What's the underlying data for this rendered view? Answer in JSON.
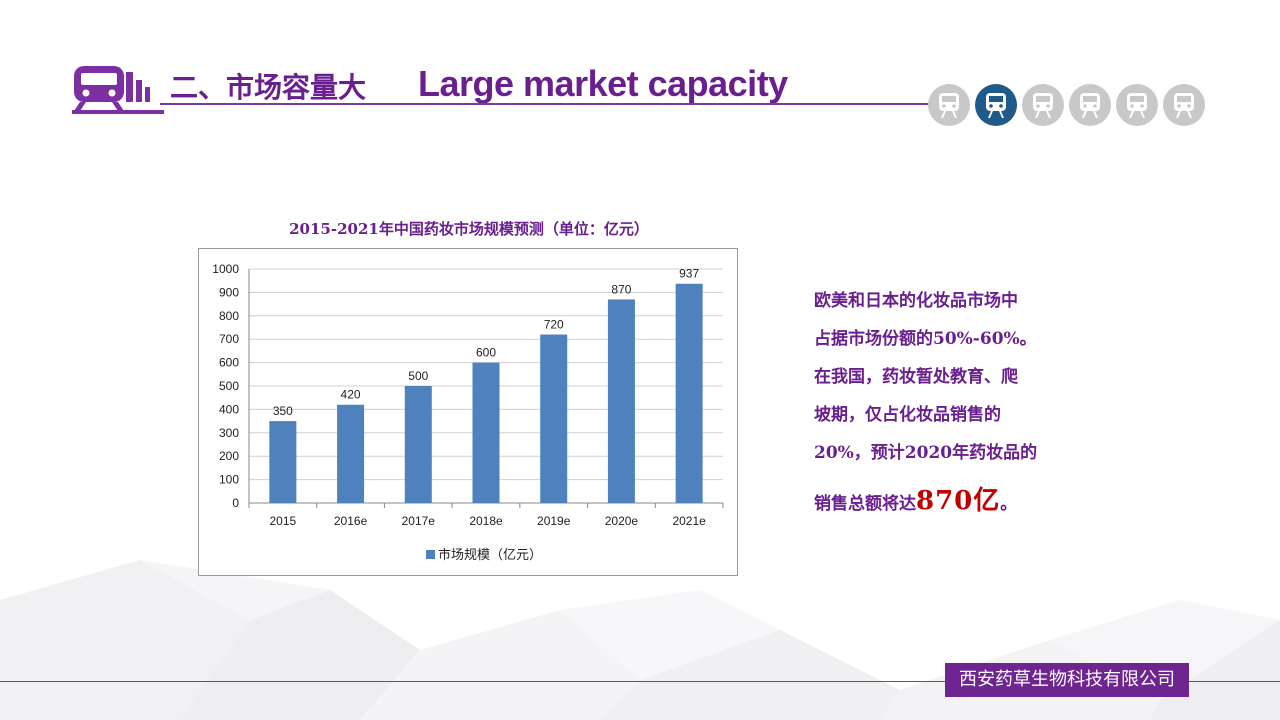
{
  "header": {
    "title_zh": "二、市场容量大",
    "title_en": "Large market capacity",
    "nav_icons": [
      "train-icon",
      "train-icon",
      "train-icon",
      "train-icon",
      "train-icon",
      "train-icon"
    ],
    "nav_active_index": 1
  },
  "chart_title": "2015-2021年中国药妆市场规模预测（单位：亿元）",
  "chart_data": {
    "type": "bar",
    "categories": [
      "2015",
      "2016e",
      "2017e",
      "2018e",
      "2019e",
      "2020e",
      "2021e"
    ],
    "series": [
      {
        "name": "市场规模（亿元）",
        "values": [
          350,
          420,
          500,
          600,
          720,
          870,
          937
        ]
      }
    ],
    "ylim": [
      0,
      1000
    ],
    "yticks": [
      0,
      100,
      200,
      300,
      400,
      500,
      600,
      700,
      800,
      900,
      1000
    ],
    "grid": true,
    "legend": "bottom",
    "bar_color": "#4f81bd"
  },
  "description": {
    "line1": "欧美和日本的化妆品市场中",
    "line2": "占据市场份额的50%-60%。",
    "line3": "在我国，药妆暂处教育、爬",
    "line4": "坡期，仅占化妆品销售的",
    "line5": "20%，预计2020年药妆品的",
    "line6_prefix": "销售总额将达",
    "line6_highlight": "870亿",
    "line6_suffix": "。"
  },
  "footer": {
    "company": "西安药草生物科技有限公司"
  },
  "colors": {
    "purple": "#6a1f8f",
    "highlight": "#c00000",
    "nav_active": "#1f5a8b",
    "nav_inactive": "#c8c8c8"
  }
}
